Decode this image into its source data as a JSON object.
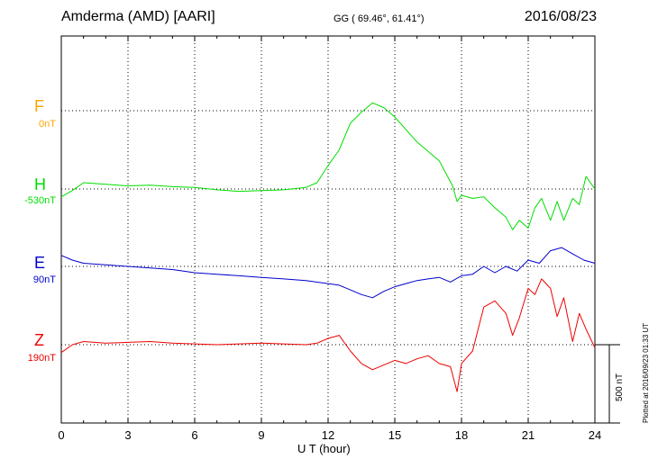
{
  "header": {
    "title": "Amderma (AMD)  [AARI]",
    "coords": "GG ( 69.46°,  61.41°)",
    "date": "2016/08/23"
  },
  "footer": {
    "plotted": "Plotted at 2016/09/23 01:33 UT"
  },
  "chart_data": {
    "type": "line",
    "title": "Amderma (AMD)  [AARI]",
    "xlabel": "U T (hour)",
    "ylabel": "",
    "xlim": [
      0,
      24
    ],
    "x_ticks": [
      "0",
      "3",
      "6",
      "9",
      "12",
      "15",
      "18",
      "21",
      "24"
    ],
    "grid": true,
    "scale_bar": {
      "label": "500 nT",
      "value_nT": 500
    },
    "colors": {
      "F": "#ffa500",
      "H": "#00dd00",
      "E": "#0000cc",
      "Z": "#ee0000"
    },
    "series": [
      {
        "name": "F",
        "baseline": "0nT",
        "color": "#ffa500",
        "x": [],
        "values": []
      },
      {
        "name": "H",
        "baseline": "-530nT",
        "color": "#00dd00",
        "x": [
          0,
          0.5,
          1,
          2,
          3,
          4,
          5,
          6,
          7,
          8,
          9,
          10,
          11,
          11.5,
          12,
          12.5,
          13,
          13.5,
          14,
          14.5,
          15,
          15.5,
          16,
          16.5,
          17,
          17.3,
          17.6,
          17.8,
          18,
          18.5,
          19,
          19.5,
          20,
          20.3,
          20.6,
          21,
          21.3,
          21.6,
          22,
          22.3,
          22.6,
          23,
          23.3,
          23.6,
          24
        ],
        "values": [
          -50,
          -10,
          40,
          30,
          20,
          25,
          15,
          10,
          -5,
          -15,
          -10,
          -5,
          10,
          40,
          150,
          250,
          420,
          490,
          550,
          520,
          460,
          380,
          300,
          240,
          180,
          100,
          20,
          -80,
          -40,
          -60,
          -50,
          -120,
          -180,
          -260,
          -200,
          -250,
          -120,
          -60,
          -200,
          -80,
          -200,
          -60,
          -100,
          80,
          0
        ]
      },
      {
        "name": "E",
        "baseline": "90nT",
        "color": "#0000cc",
        "x": [
          0,
          0.5,
          1,
          2,
          3,
          4,
          5,
          6,
          7,
          8,
          9,
          10,
          11,
          12,
          12.5,
          13,
          13.5,
          14,
          14.5,
          15,
          15.5,
          16,
          16.5,
          17,
          17.5,
          18,
          18.5,
          19,
          19.5,
          20,
          20.5,
          21,
          21.5,
          22,
          22.5,
          23,
          23.5,
          24
        ],
        "values": [
          70,
          40,
          20,
          10,
          0,
          -10,
          -20,
          -40,
          -50,
          -60,
          -70,
          -80,
          -90,
          -110,
          -120,
          -150,
          -180,
          -200,
          -160,
          -130,
          -110,
          -90,
          -80,
          -70,
          -100,
          -60,
          -50,
          0,
          -40,
          0,
          -30,
          40,
          20,
          100,
          120,
          80,
          40,
          20
        ]
      },
      {
        "name": "Z",
        "baseline": "190nT",
        "color": "#ee0000",
        "x": [
          0,
          0.5,
          1,
          2,
          3,
          4,
          5,
          6,
          7,
          8,
          9,
          10,
          11,
          11.5,
          12,
          12.5,
          13,
          13.5,
          14,
          14.5,
          15,
          15.5,
          16,
          16.5,
          17,
          17.5,
          17.8,
          18,
          18.5,
          19,
          19.5,
          20,
          20.3,
          20.6,
          21,
          21.3,
          21.6,
          22,
          22.3,
          22.6,
          23,
          23.3,
          23.6,
          24
        ],
        "values": [
          -50,
          0,
          20,
          10,
          15,
          20,
          10,
          5,
          0,
          5,
          10,
          5,
          0,
          10,
          40,
          60,
          -40,
          -120,
          -160,
          -130,
          -100,
          -120,
          -90,
          -70,
          -120,
          -140,
          -300,
          -120,
          -40,
          240,
          280,
          200,
          60,
          170,
          360,
          320,
          420,
          360,
          180,
          300,
          20,
          200,
          100,
          -20
        ]
      }
    ]
  }
}
